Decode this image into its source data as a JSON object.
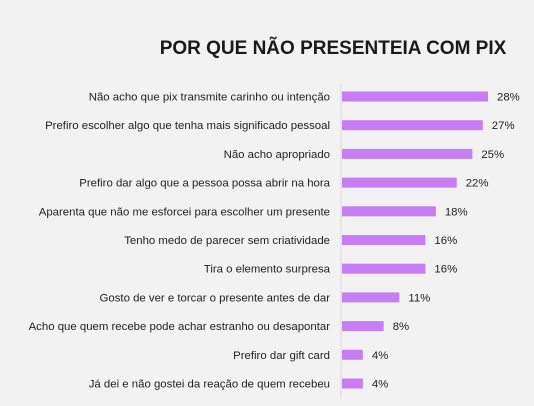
{
  "chart_data": {
    "type": "bar",
    "orientation": "horizontal",
    "title": "POR QUE NÃO PRESENTEIA COM PIX",
    "xlabel": "",
    "ylabel": "",
    "value_suffix": "%",
    "xlim": [
      0,
      28
    ],
    "grid": false,
    "bar_color": "#c77df3",
    "categories": [
      "Não acho que pix transmite carinho ou intenção",
      "Prefiro escolher algo que tenha mais significado pessoal",
      "Não acho apropriado",
      "Prefiro dar algo que a pessoa possa abrir na hora",
      "Aparenta que não me esforcei para escolher um presente",
      "Tenho medo de parecer sem criatividade",
      "Tira o elemento surpresa",
      "Gosto de ver e torcar o presente antes de dar",
      "Acho que quem recebe pode achar estranho ou desapontar",
      "Prefiro dar gift card",
      "Já dei e não gostei da reação de quem recebeu"
    ],
    "values": [
      28,
      27,
      25,
      22,
      18,
      16,
      16,
      11,
      8,
      4,
      4
    ],
    "labels": [
      "28%",
      "27%",
      "25%",
      "22%",
      "18%",
      "16%",
      "16%",
      "11%",
      "8%",
      "4%",
      "4%"
    ]
  }
}
